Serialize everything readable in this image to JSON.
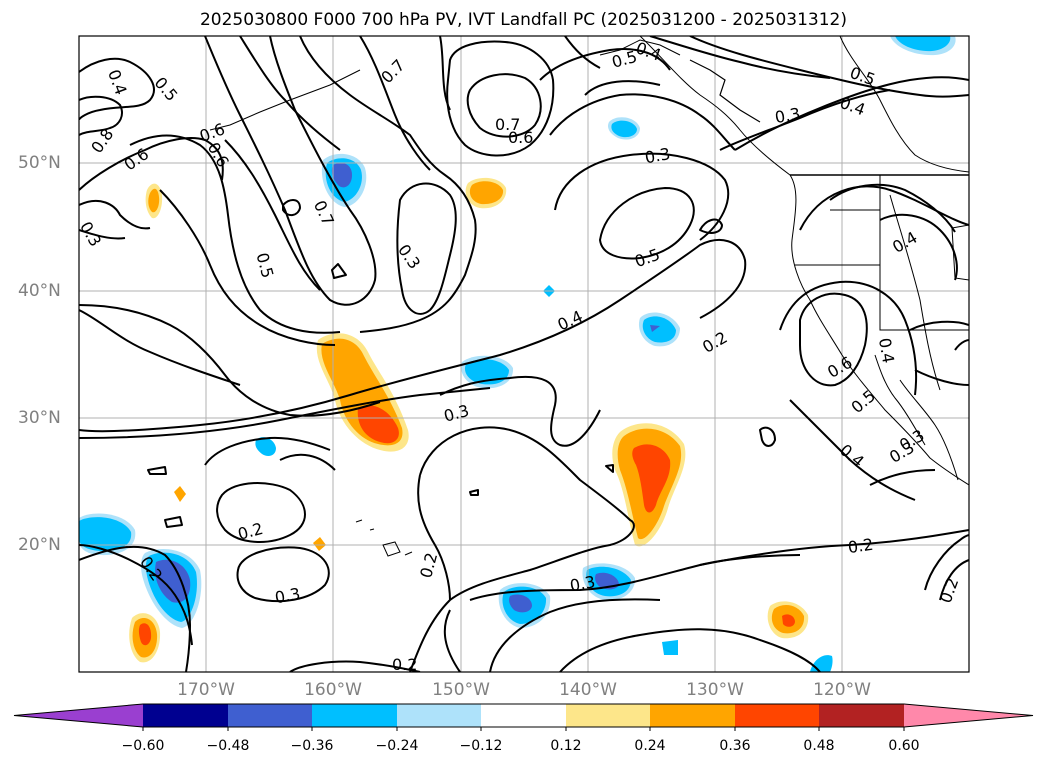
{
  "title": "2025030800 F000 700 hPa PV, IVT Landfall PC (2025031200 - 2025031312)",
  "longitude_labels": [
    "170°W",
    "160°W",
    "150°W",
    "140°W",
    "130°W",
    "120°W"
  ],
  "latitude_labels": [
    "50°N",
    "40°N",
    "30°N",
    "20°N"
  ],
  "colorbar": {
    "tick_labels": [
      "−0.60",
      "−0.48",
      "−0.36",
      "−0.24",
      "−0.12",
      "0.12",
      "0.24",
      "0.36",
      "0.48",
      "0.60"
    ],
    "colors": [
      "#9a3fd0",
      "#000090",
      "#3f5fd0",
      "#00bfff",
      "#aee2fa",
      "#ffffff",
      "#fde68a",
      "#ffa500",
      "#ff4500",
      "#b22222",
      "#ff88aa"
    ]
  },
  "contour_labels": [
    "0.5",
    "0.4",
    "0.6",
    "0.6",
    "0.8",
    "0.6",
    "0.7",
    "0.3",
    "0.5",
    "0.7",
    "0.6",
    "0.5",
    "0.4",
    "0.3",
    "0.3",
    "0.7",
    "0.3",
    "0.5",
    "0.5",
    "0.4",
    "0.4",
    "0.2",
    "0.6",
    "0.4",
    "0.4",
    "0.5",
    "0.4",
    "0.3",
    "0.3",
    "0.2",
    "0.2",
    "0.2",
    "0.3",
    "0.3",
    "0.2",
    "0.2",
    "0.2",
    "0.3"
  ]
}
